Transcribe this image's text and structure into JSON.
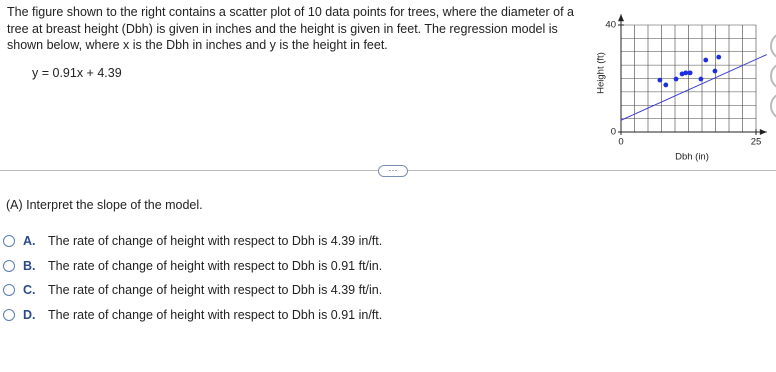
{
  "question": {
    "intro": "The figure shown to the right contains a scatter plot of 10 data points for trees, where the diameter of a tree at breast height (Dbh) is given in inches and the height is given in feet. The regression model is shown below, where x is the Dbh in inches and y is the height in feet.",
    "equation": "y = 0.91x + 4.39",
    "more_button": "···",
    "part": "(A) Interpret the slope of the model.",
    "options": [
      {
        "letter": "A.",
        "text": "The rate of change of height with respect to Dbh is 4.39 in/ft."
      },
      {
        "letter": "B.",
        "text": "The rate of change of height with respect to Dbh is 0.91 ft/in."
      },
      {
        "letter": "C.",
        "text": "The rate of change of height with respect to Dbh is 4.39 ft/in."
      },
      {
        "letter": "D.",
        "text": "The rate of change of height with respect to Dbh is 0.91 in/ft."
      }
    ]
  },
  "chart_data": {
    "type": "scatter",
    "x_label": "Dbh (in)",
    "y_label": "Height (ft)",
    "x": [
      7.2,
      8.3,
      10.2,
      11.3,
      12.0,
      12.8,
      14.8,
      15.7,
      17.4,
      18.1
    ],
    "values": [
      19.4,
      17.6,
      19.8,
      21.7,
      22.1,
      22.1,
      19.8,
      26.9,
      22.8,
      28.0
    ],
    "color": "#1f2fe0",
    "fit_line": {
      "slope": 0.91,
      "intercept": 4.39,
      "color": "#3b3bd6"
    },
    "xlim": [
      0,
      27
    ],
    "ylim": [
      0,
      44
    ],
    "xticks": [
      0,
      25
    ],
    "yticks": [
      0,
      40
    ],
    "x_gridlines": [
      2.5,
      5,
      7.5,
      10,
      12.5,
      15,
      17.5,
      20,
      22.5,
      25
    ],
    "y_gridlines": [
      5,
      10,
      15,
      20,
      25,
      30,
      35,
      40
    ],
    "grid": true
  }
}
